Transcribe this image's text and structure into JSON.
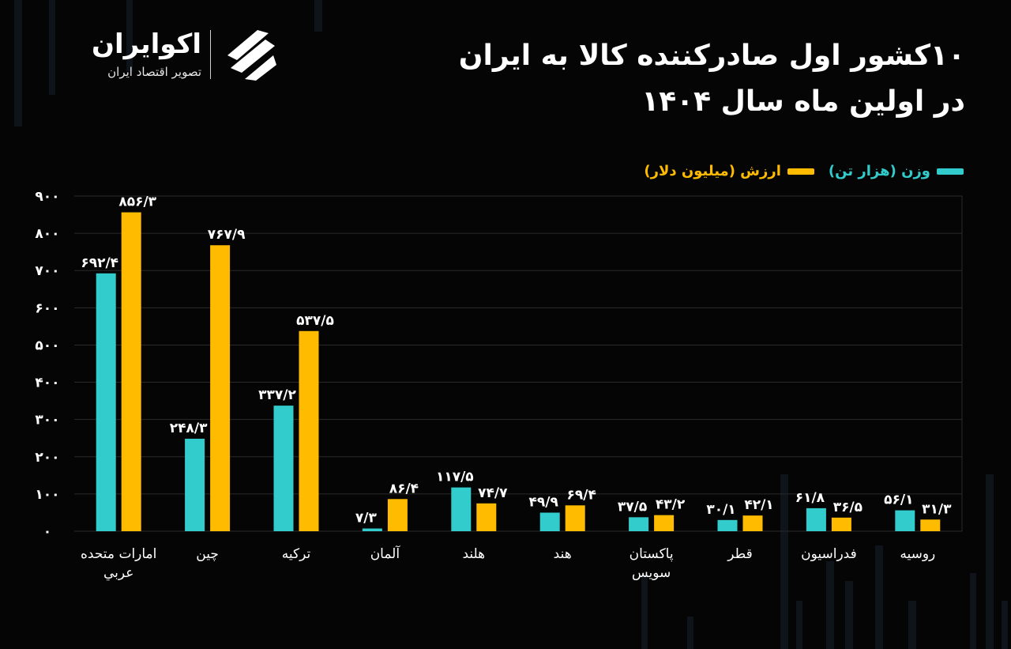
{
  "logo": {
    "name": "اکوایران",
    "tagline": "تصویر اقتصاد ایران",
    "icon": "ecoiran-logo-icon"
  },
  "title": {
    "line1": "۱۰کشور اول صادرکننده کالا به ایران",
    "line2": "در اولین ماه سال ۱۴۰۴"
  },
  "colors": {
    "weight": "#33cccc",
    "value": "#ffbb00",
    "background": "#050505",
    "grid": "#2a2a2a"
  },
  "chart_data": {
    "type": "bar",
    "categories": [
      [
        "امارات متحده",
        "عربي"
      ],
      [
        "چين"
      ],
      [
        "ترکيه"
      ],
      [
        "آلمان"
      ],
      [
        "هلند"
      ],
      [
        "هند"
      ],
      [
        "پاکستان",
        "سويس"
      ],
      [
        "قطر"
      ],
      [
        "فدراسيون"
      ],
      [
        "روسيه"
      ]
    ],
    "series": [
      {
        "name": "وزن (هزار تن)",
        "color": "#33cccc",
        "values": [
          692.4,
          248.3,
          337.2,
          7.3,
          117.5,
          49.9,
          37.5,
          30.1,
          61.8,
          56.1
        ],
        "labels": [
          "۶۹۲/۴",
          "۲۴۸/۳",
          "۳۳۷/۲",
          "۷/۳",
          "۱۱۷/۵",
          "۴۹/۹",
          "۳۷/۵",
          "۳۰/۱",
          "۶۱/۸",
          "۵۶/۱"
        ]
      },
      {
        "name": "ارزش (ميليون دلار)",
        "color": "#ffbb00",
        "values": [
          856.3,
          767.9,
          537.5,
          86.4,
          74.7,
          69.4,
          43.2,
          42.1,
          36.5,
          31.3
        ],
        "labels": [
          "۸۵۶/۳",
          "۷۶۷/۹",
          "۵۳۷/۵",
          "۸۶/۴",
          "۷۴/۷",
          "۶۹/۴",
          "۴۳/۲",
          "۴۲/۱",
          "۳۶/۵",
          "۳۱/۳"
        ]
      }
    ],
    "ylim": [
      0,
      900
    ],
    "yticks": [
      0,
      100,
      200,
      300,
      400,
      500,
      600,
      700,
      800,
      900
    ],
    "ytick_labels": [
      "۰",
      "۱۰۰",
      "۲۰۰",
      "۳۰۰",
      "۴۰۰",
      "۵۰۰",
      "۶۰۰",
      "۷۰۰",
      "۸۰۰",
      "۹۰۰"
    ],
    "grid": true,
    "legend": "top-right"
  }
}
